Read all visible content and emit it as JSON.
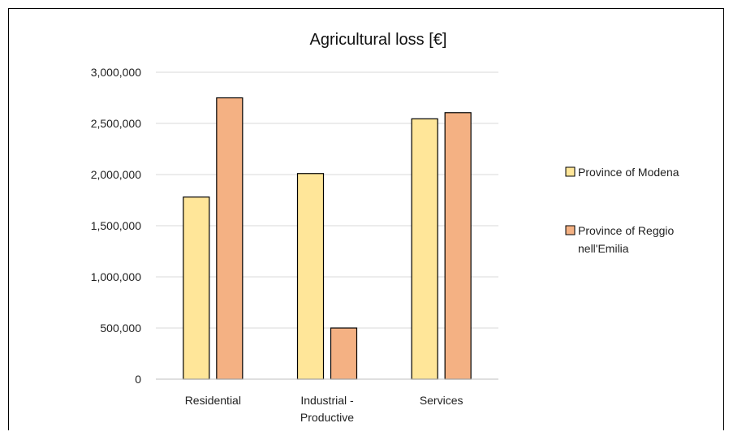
{
  "chart_data": {
    "type": "bar",
    "title": "Agricultural loss [€]",
    "xlabel": "",
    "ylabel": "",
    "categories": [
      [
        "Residential"
      ],
      [
        "Industrial -",
        "Productive"
      ],
      [
        "Services"
      ]
    ],
    "series": [
      {
        "name": "Province of Modena",
        "color": "#FFE699",
        "values": [
          1780000,
          2010000,
          2545000
        ]
      },
      {
        "name": "Province of Reggio nell'Emilia",
        "legend_lines": [
          "Province of Reggio",
          "nell'Emilia"
        ],
        "color": "#F4B183",
        "values": [
          2750000,
          500000,
          2605000
        ]
      }
    ],
    "ylim": [
      0,
      3000000
    ],
    "yticks": [
      0,
      500000,
      1000000,
      1500000,
      2000000,
      2500000,
      3000000
    ],
    "ytick_labels": [
      "0",
      "500,000",
      "1,000,000",
      "1,500,000",
      "2,000,000",
      "2,500,000",
      "3,000,000"
    ],
    "grid": true,
    "legend_position": "right"
  }
}
